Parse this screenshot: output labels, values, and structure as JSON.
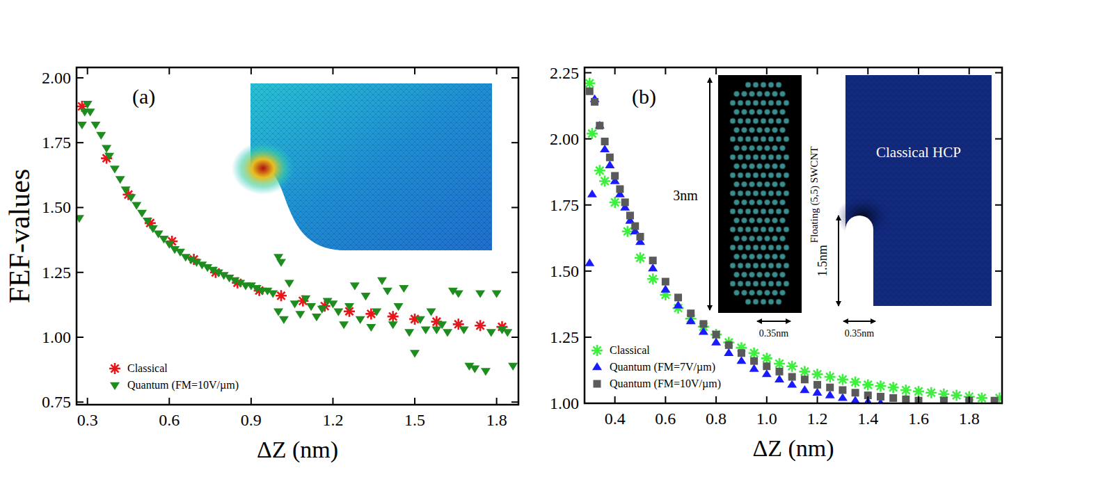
{
  "chart_data": [
    {
      "type": "scatter",
      "panel_label": "(a)",
      "y_label": "FEF-values",
      "x_label": "ΔZ (nm)",
      "xlim": [
        0.26,
        1.88
      ],
      "ylim": [
        0.74,
        2.04
      ],
      "xticks": [
        0.3,
        0.6,
        0.9,
        1.2,
        1.5,
        1.8
      ],
      "yticks": [
        0.75,
        {
          "value": 1,
          "label": "1.00"
        },
        1.25,
        {
          "value": 1.5,
          "label": "1.50"
        },
        1.75,
        {
          "value": 2,
          "label": "2.00"
        }
      ],
      "legend": "lower left",
      "series": [
        {
          "name": "Classical",
          "color": "#e8161b",
          "marker": "asterisk",
          "x": [
            0.28,
            0.37,
            0.45,
            0.53,
            0.61,
            0.69,
            0.77,
            0.85,
            0.93,
            1.01,
            1.09,
            1.17,
            1.26,
            1.34,
            1.42,
            1.5,
            1.58,
            1.66,
            1.74,
            1.82
          ],
          "values": [
            1.89,
            1.69,
            1.55,
            1.44,
            1.37,
            1.3,
            1.25,
            1.21,
            1.18,
            1.16,
            1.14,
            1.12,
            1.1,
            1.09,
            1.08,
            1.07,
            1.06,
            1.05,
            1.045,
            1.04
          ]
        },
        {
          "name": "Quantum (FM=10V/µm)",
          "color": "#1e8c1e",
          "marker": "triangle-down",
          "x": [
            0.27,
            0.28,
            0.29,
            0.3,
            0.31,
            0.33,
            0.35,
            0.37,
            0.38,
            0.4,
            0.42,
            0.44,
            0.46,
            0.48,
            0.5,
            0.52,
            0.54,
            0.56,
            0.58,
            0.6,
            0.62,
            0.64,
            0.66,
            0.68,
            0.7,
            0.72,
            0.74,
            0.76,
            0.78,
            0.8,
            0.82,
            0.84,
            0.86,
            0.88,
            0.9,
            0.92,
            0.94,
            0.96,
            0.98,
            1.0,
            1.01,
            1.0,
            1.02,
            1.04,
            1.06,
            1.08,
            1.1,
            1.12,
            1.14,
            1.16,
            1.18,
            1.2,
            1.22,
            1.24,
            1.26,
            1.28,
            1.3,
            1.32,
            1.34,
            1.36,
            1.38,
            1.4,
            1.42,
            1.44,
            1.46,
            1.48,
            1.5,
            1.52,
            1.54,
            1.56,
            1.58,
            1.6,
            1.62,
            1.64,
            1.66,
            1.68,
            1.7,
            1.72,
            1.74,
            1.76,
            1.78,
            1.8,
            1.82,
            1.84,
            1.86
          ],
          "values": [
            1.46,
            1.82,
            1.87,
            1.9,
            1.87,
            1.82,
            1.78,
            1.73,
            1.7,
            1.65,
            1.61,
            1.57,
            1.54,
            1.51,
            1.48,
            1.45,
            1.42,
            1.4,
            1.38,
            1.36,
            1.34,
            1.33,
            1.31,
            1.3,
            1.29,
            1.28,
            1.27,
            1.26,
            1.25,
            1.24,
            1.23,
            1.22,
            1.21,
            1.2,
            1.2,
            1.19,
            1.18,
            1.18,
            1.17,
            1.31,
            1.29,
            1.1,
            1.07,
            1.21,
            1.13,
            1.09,
            1.15,
            1.12,
            1.08,
            1.11,
            1.14,
            1.13,
            1.1,
            1.05,
            1.12,
            1.2,
            1.07,
            1.16,
            1.04,
            1.1,
            1.22,
            1.18,
            1.05,
            1.12,
            1.19,
            1.02,
            0.94,
            1.07,
            1.03,
            1.1,
            1.03,
            1.05,
            1.02,
            1.18,
            1.17,
            1.03,
            0.89,
            0.88,
            1.17,
            0.87,
            1.02,
            1.17,
            1.03,
            1.02,
            0.89
          ]
        }
      ]
    },
    {
      "type": "scatter",
      "panel_label": "(b)",
      "x_label": "ΔZ (nm)",
      "xlim": [
        0.28,
        1.93
      ],
      "ylim": [
        1.0,
        2.27
      ],
      "xticks": [
        0.4,
        0.6,
        0.8,
        {
          "value": 1,
          "label": "1.0"
        },
        1.2,
        1.4,
        1.6,
        1.8
      ],
      "yticks": [
        {
          "value": 1,
          "label": "1.00"
        },
        1.25,
        {
          "value": 1.5,
          "label": "1.50"
        },
        1.75,
        {
          "value": 2,
          "label": "2.00"
        },
        2.25
      ],
      "legend": "lower left",
      "annotations": [
        "3nm",
        "Floating (5,5) SWCNT",
        "0.35nm",
        "Classical HCP",
        "1.5nm",
        "0.35nm"
      ],
      "series": [
        {
          "name": "Classical",
          "color": "#3df03d",
          "marker": "asterisk",
          "x": [
            0.3,
            0.31,
            0.34,
            0.36,
            0.4,
            0.45,
            0.5,
            0.55,
            0.6,
            0.65,
            0.7,
            0.75,
            0.8,
            0.85,
            0.9,
            0.95,
            1.0,
            1.05,
            1.1,
            1.15,
            1.2,
            1.25,
            1.3,
            1.35,
            1.4,
            1.45,
            1.5,
            1.55,
            1.6,
            1.65,
            1.7,
            1.75,
            1.8,
            1.85,
            1.92
          ],
          "values": [
            2.21,
            2.02,
            1.88,
            1.84,
            1.76,
            1.65,
            1.55,
            1.47,
            1.41,
            1.36,
            1.32,
            1.29,
            1.26,
            1.23,
            1.21,
            1.19,
            1.17,
            1.15,
            1.14,
            1.12,
            1.11,
            1.1,
            1.09,
            1.08,
            1.07,
            1.065,
            1.06,
            1.05,
            1.045,
            1.04,
            1.035,
            1.03,
            1.025,
            1.02,
            1.02
          ]
        },
        {
          "name": "Quantum (FM=7V/µm)",
          "color": "#1a1aff",
          "marker": "triangle-up",
          "x": [
            0.3,
            0.31,
            0.32,
            0.34,
            0.36,
            0.38,
            0.4,
            0.42,
            0.44,
            0.46,
            0.48,
            0.5,
            0.55,
            0.6,
            0.65,
            0.7,
            0.75,
            0.8,
            0.85,
            0.9,
            0.95,
            1.0,
            1.05,
            1.1,
            1.15,
            1.2,
            1.25,
            1.3,
            1.35,
            1.4,
            1.45
          ],
          "values": [
            1.53,
            1.79,
            2.15,
            2.05,
            1.96,
            1.9,
            1.84,
            1.79,
            1.74,
            1.69,
            1.65,
            1.61,
            1.51,
            1.43,
            1.37,
            1.31,
            1.27,
            1.23,
            1.19,
            1.16,
            1.13,
            1.11,
            1.09,
            1.07,
            1.05,
            1.04,
            1.03,
            1.02,
            1.01,
            1.005,
            1.0
          ]
        },
        {
          "name": "Quantum (FM=10V/µm)",
          "color": "#5a5a5a",
          "marker": "square",
          "x": [
            0.3,
            0.32,
            0.34,
            0.36,
            0.38,
            0.4,
            0.42,
            0.44,
            0.46,
            0.48,
            0.5,
            0.55,
            0.6,
            0.65,
            0.7,
            0.75,
            0.8,
            0.85,
            0.9,
            0.95,
            1.0,
            1.05,
            1.1,
            1.15,
            1.2,
            1.25,
            1.3,
            1.35,
            1.4,
            1.45,
            1.5,
            1.55,
            1.6,
            1.7,
            1.8,
            1.9
          ],
          "values": [
            2.18,
            2.14,
            2.05,
            1.99,
            1.93,
            1.86,
            1.81,
            1.76,
            1.71,
            1.67,
            1.63,
            1.54,
            1.46,
            1.4,
            1.34,
            1.3,
            1.26,
            1.22,
            1.19,
            1.16,
            1.14,
            1.12,
            1.1,
            1.09,
            1.07,
            1.06,
            1.05,
            1.04,
            1.03,
            1.025,
            1.02,
            1.015,
            1.01,
            1.01,
            1.01,
            1.01
          ]
        }
      ]
    }
  ]
}
